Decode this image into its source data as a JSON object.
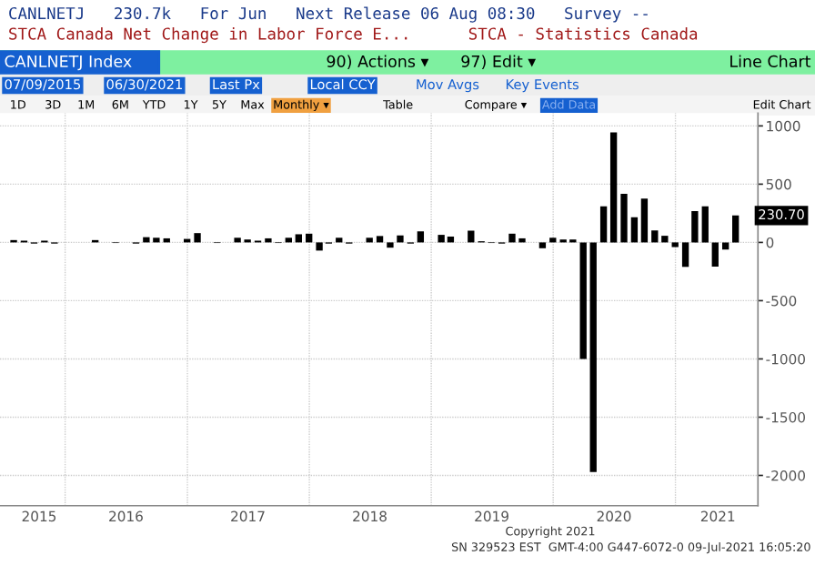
{
  "chart_data": {
    "type": "bar",
    "title": "CANLNETJ   230.7k   For Jun   Next Release 06 Aug 08:30   Survey --",
    "subtitle": "STCA Canada Net Change in Labor Force E...      STCA - Statistics Canada",
    "x": [
      "2015-07-31",
      "2015-08-31",
      "2015-09-30",
      "2015-10-31",
      "2015-11-30",
      "2015-12-31",
      "2016-01-31",
      "2016-02-29",
      "2016-03-31",
      "2016-04-30",
      "2016-05-31",
      "2016-06-30",
      "2016-07-31",
      "2016-08-31",
      "2016-09-30",
      "2016-10-31",
      "2016-11-30",
      "2016-12-31",
      "2017-01-31",
      "2017-02-28",
      "2017-03-31",
      "2017-04-30",
      "2017-05-31",
      "2017-06-30",
      "2017-07-31",
      "2017-08-31",
      "2017-09-30",
      "2017-10-31",
      "2017-11-30",
      "2017-12-31",
      "2018-01-31",
      "2018-02-28",
      "2018-03-31",
      "2018-04-30",
      "2018-05-31",
      "2018-06-30",
      "2018-07-31",
      "2018-08-31",
      "2018-09-30",
      "2018-10-31",
      "2018-11-30",
      "2018-12-31",
      "2019-01-31",
      "2019-02-28",
      "2019-03-31",
      "2019-04-30",
      "2019-05-31",
      "2019-06-30",
      "2019-07-31",
      "2019-08-31",
      "2019-09-30",
      "2019-10-31",
      "2019-11-30",
      "2019-12-31",
      "2020-01-31",
      "2020-02-29",
      "2020-03-31",
      "2020-04-30",
      "2020-05-31",
      "2020-06-30",
      "2020-07-31",
      "2020-08-31",
      "2020-09-30",
      "2020-10-31",
      "2020-11-30",
      "2020-12-31",
      "2021-01-31",
      "2021-02-28",
      "2021-03-31",
      "2021-04-30",
      "2021-05-31",
      "2021-06-30"
    ],
    "values": [
      20,
      15,
      -10,
      15,
      -10,
      0,
      0,
      0,
      20,
      0,
      -5,
      0,
      -10,
      45,
      40,
      35,
      0,
      30,
      80,
      0,
      -5,
      0,
      40,
      25,
      15,
      35,
      -5,
      40,
      70,
      75,
      -70,
      -10,
      40,
      -10,
      0,
      40,
      55,
      -45,
      60,
      -10,
      95,
      0,
      65,
      50,
      0,
      100,
      10,
      -5,
      -10,
      75,
      35,
      0,
      -50,
      40,
      25,
      25,
      -1000,
      -1970,
      310,
      945,
      418,
      216,
      376,
      103,
      57,
      -40,
      -210,
      268,
      310,
      -207,
      -62,
      230.7
    ],
    "color": "#000000",
    "xlim": [
      "2015-06-20",
      "2021-09-05"
    ],
    "xticks": [
      {
        "value": "2015-10-15",
        "label": "2015"
      },
      {
        "value": "2016-01-01",
        "label": null
      },
      {
        "value": "2016-07-01",
        "label": "2016"
      },
      {
        "value": "2017-01-01",
        "label": null
      },
      {
        "value": "2017-07-01",
        "label": "2017"
      },
      {
        "value": "2018-01-01",
        "label": null
      },
      {
        "value": "2018-07-01",
        "label": "2018"
      },
      {
        "value": "2019-01-01",
        "label": null
      },
      {
        "value": "2019-07-01",
        "label": "2019"
      },
      {
        "value": "2020-01-01",
        "label": null
      },
      {
        "value": "2020-07-01",
        "label": "2020"
      },
      {
        "value": "2021-01-01",
        "label": null
      },
      {
        "value": "2021-05-08",
        "label": "2021"
      }
    ],
    "ylim": [
      -2260,
      1110
    ],
    "yticks": [
      -2000,
      -1500,
      -1000,
      -500,
      0,
      500,
      1000
    ],
    "grid": true,
    "annotations": [
      {
        "text": "230.70",
        "x": "2021-06-30",
        "y": 230.7
      },
      "CANLNETJ Index",
      "90) Actions ▾",
      "97) Edit ▾",
      "Line Chart",
      "07/09/2015",
      "06/30/2021",
      "Last Px",
      "Local CCY",
      "Mov Avgs",
      "Key Events",
      "1D",
      "3D",
      "1M",
      "6M",
      "YTD",
      "1Y",
      "5Y",
      "Max",
      "Monthly ▾",
      "Table",
      "Compare ▾",
      "Add Data",
      "Edit Chart",
      "Copyright 2021",
      "SN 329523 EST  GMT-4:00 G447-6072-0 09-Jul-2021 16:05:20"
    ]
  }
}
